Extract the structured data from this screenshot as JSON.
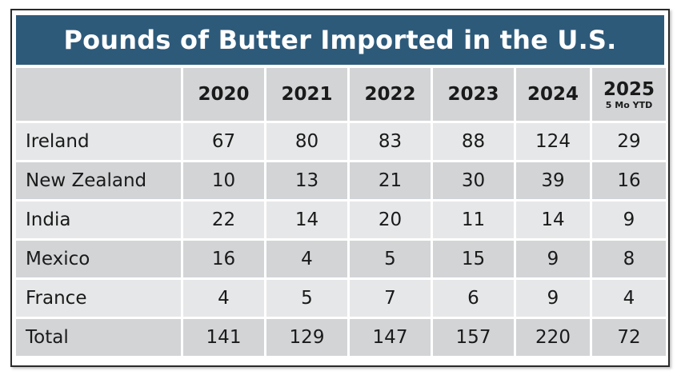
{
  "title": "Pounds of Butter Imported in the U.S.",
  "chart_data": {
    "type": "table",
    "title": "Pounds of Butter Imported in the U.S.",
    "columns": [
      {
        "label": "2020",
        "sub": ""
      },
      {
        "label": "2021",
        "sub": ""
      },
      {
        "label": "2022",
        "sub": ""
      },
      {
        "label": "2023",
        "sub": ""
      },
      {
        "label": "2024",
        "sub": ""
      },
      {
        "label": "2025",
        "sub": "5 Mo YTD"
      }
    ],
    "rows": [
      {
        "label": "Ireland",
        "values": [
          "67",
          "80",
          "83",
          "88",
          "124",
          "29"
        ]
      },
      {
        "label": "New Zealand",
        "values": [
          "10",
          "13",
          "21",
          "30",
          "39",
          "16"
        ]
      },
      {
        "label": "India",
        "values": [
          "22",
          "14",
          "20",
          "11",
          "14",
          "9"
        ]
      },
      {
        "label": "Mexico",
        "values": [
          "16",
          "4",
          "5",
          "15",
          "9",
          "8"
        ]
      },
      {
        "label": "France",
        "values": [
          "4",
          "5",
          "7",
          "6",
          "9",
          "4"
        ]
      },
      {
        "label": "Total",
        "values": [
          "141",
          "129",
          "147",
          "157",
          "220",
          "72"
        ]
      }
    ]
  },
  "colors": {
    "title_bg": "#2e5a7a",
    "header_bg": "#d2d4d6",
    "row_light": "#e6e7e8",
    "row_dark": "#d2d4d6"
  }
}
